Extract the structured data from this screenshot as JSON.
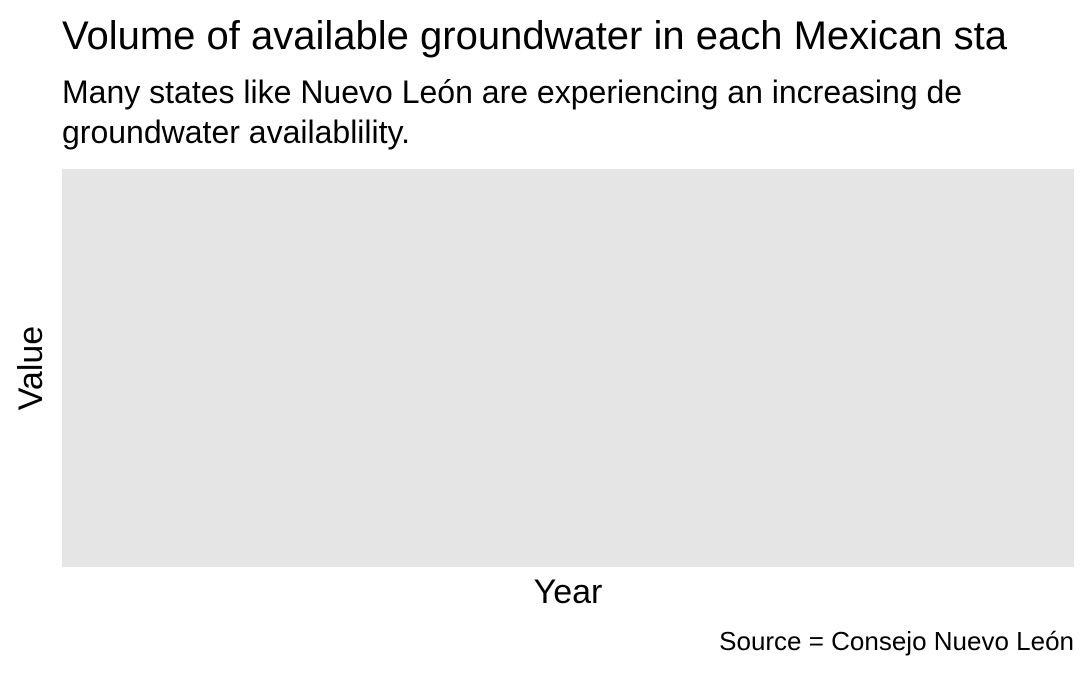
{
  "chart_data": {
    "type": "line",
    "title": "Volume of available groundwater in each Mexican sta",
    "subtitle_lines": [
      "Many states like Nuevo León are experiencing an increasing de",
      "groundwater availablility."
    ],
    "xlabel": "Year",
    "ylabel": "Value",
    "caption": "Source = Consejo Nuevo León",
    "series": [],
    "grid": false,
    "panel_background": "#e5e5e5"
  }
}
